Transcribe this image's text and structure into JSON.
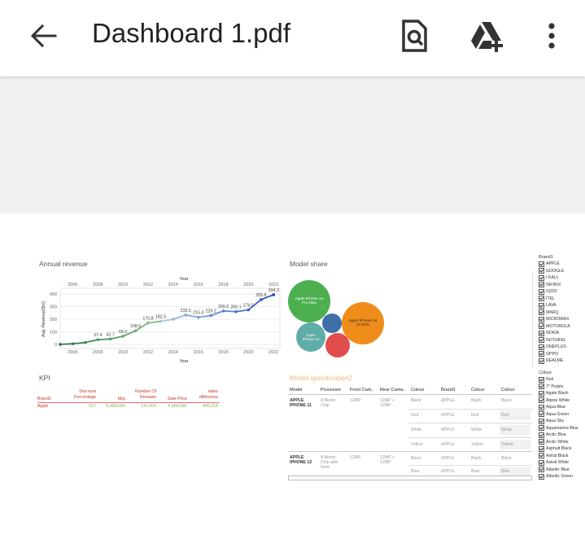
{
  "app": {
    "title": "Dashboard 1.pdf",
    "icons": {
      "back": "arrow-back-icon",
      "find": "find-in-page-icon",
      "drive": "add-to-drive-icon",
      "more": "more-vert-icon"
    }
  },
  "dashboard": {
    "annual_revenue": {
      "title": "Annual revenue",
      "axis_top": "Year",
      "axis_bottom": "Year",
      "ylabel": "Avg. Revenue($m)"
    },
    "model_share": {
      "title": "Model share",
      "bubbles": [
        {
          "label": "Apple iPhone 14 Pro Max",
          "value": "",
          "color": "#4caf50"
        },
        {
          "label": "Apple iPhone 14",
          "value": "17.00%",
          "color": "#f08c1a"
        },
        {
          "label": "Apple iPhone 14",
          "value": "",
          "color": "#5fada8"
        },
        {
          "label": "",
          "value": "",
          "color": "#3f6fa8"
        },
        {
          "label": "",
          "value": "",
          "color": "#e14d4d"
        }
      ]
    },
    "kpi": {
      "title": "KPI",
      "headers": [
        "Brand1",
        "Discount Percentage",
        "Mrp",
        "Number Of Reviews",
        "Sale Price",
        "sales difference"
      ],
      "row": [
        "Apple",
        "617",
        "5,459,600",
        "115,424",
        "4,964,581",
        "495,019"
      ]
    },
    "spec": {
      "title": "Model specification2",
      "headers": [
        "Model",
        "Processor",
        "Front Cam..",
        "Rear Came..",
        "Colour",
        "Brand1",
        "Colour",
        "Colour"
      ],
      "models": [
        {
          "model": "APPLE IPHONE 11",
          "processor": "A Bionic Chip",
          "front": "12MP",
          "rear": "12MP + 12MP",
          "rows": [
            [
              "Black",
              "APPLE",
              "Black",
              "Black"
            ],
            [
              "Red",
              "APPLE",
              "Red",
              "Red"
            ],
            [
              "White",
              "APPLE",
              "White",
              "White"
            ],
            [
              "Yellow",
              "APPLE",
              "Yellow",
              "Yellow"
            ]
          ]
        },
        {
          "model": "APPLE IPHONE 12",
          "processor": "A Bionic Chip with Next",
          "front": "12MP",
          "rear": "12MP + 12MP",
          "rows": [
            [
              "Black",
              "APPLE",
              "Black",
              "Black"
            ],
            [
              "Blue",
              "APPLE",
              "Blue",
              "Blue"
            ]
          ]
        }
      ]
    },
    "brand_filter": {
      "title": "Brand1",
      "items": [
        "APPLE",
        "GOOGLE",
        "I KALL",
        "INFINIX",
        "IQOO",
        "ITEL",
        "LAVA",
        "MARQ",
        "MICROMAX",
        "MOTOROLA",
        "NOKIA",
        "NOTHING",
        "ONEPLUS",
        "OPPO",
        "REALME"
      ]
    },
    "colour_filter": {
      "title": "Colour",
      "items": [
        "Null",
        "7* Purple",
        "Agate Black",
        "Alpine White",
        "Aqua Blue",
        "Aqua Green",
        "Aqua Sky",
        "Aquamarine Blue",
        "Arctic Blue",
        "Arctic White",
        "Asphalt Black",
        "Astral Black",
        "Astral White",
        "Atlantic Blue",
        "Atlantic Green"
      ]
    }
  },
  "chart_data": {
    "type": "line",
    "title": "Annual revenue",
    "xlabel": "Year",
    "ylabel": "Avg. Revenue($m)",
    "x": [
      2005,
      2006,
      2007,
      2008,
      2009,
      2010,
      2011,
      2012,
      2013,
      2014,
      2015,
      2016,
      2017,
      2018,
      2019,
      2020,
      2021,
      2022
    ],
    "values": [
      0,
      5,
      15,
      37.4,
      42.7,
      65.0,
      108.0,
      170.8,
      182.5,
      200,
      233.5,
      215.4,
      229.2,
      265.5,
      260.1,
      274.5,
      355.8,
      394.3
    ],
    "value_labels": [
      "",
      "",
      "",
      "37.4",
      "42.7",
      "65.0",
      "108.0",
      "170.8",
      "182.5",
      "",
      "233.5",
      "215.4",
      "229.2",
      "265.5",
      "260.1",
      "274.5",
      "355.8",
      "394.3"
    ],
    "x_ticks": [
      2006,
      2008,
      2010,
      2012,
      2014,
      2016,
      2018,
      2020,
      2022
    ],
    "y_ticks": [
      0,
      100,
      200,
      300,
      400
    ],
    "ylim": [
      -20,
      420
    ],
    "grid": true
  }
}
